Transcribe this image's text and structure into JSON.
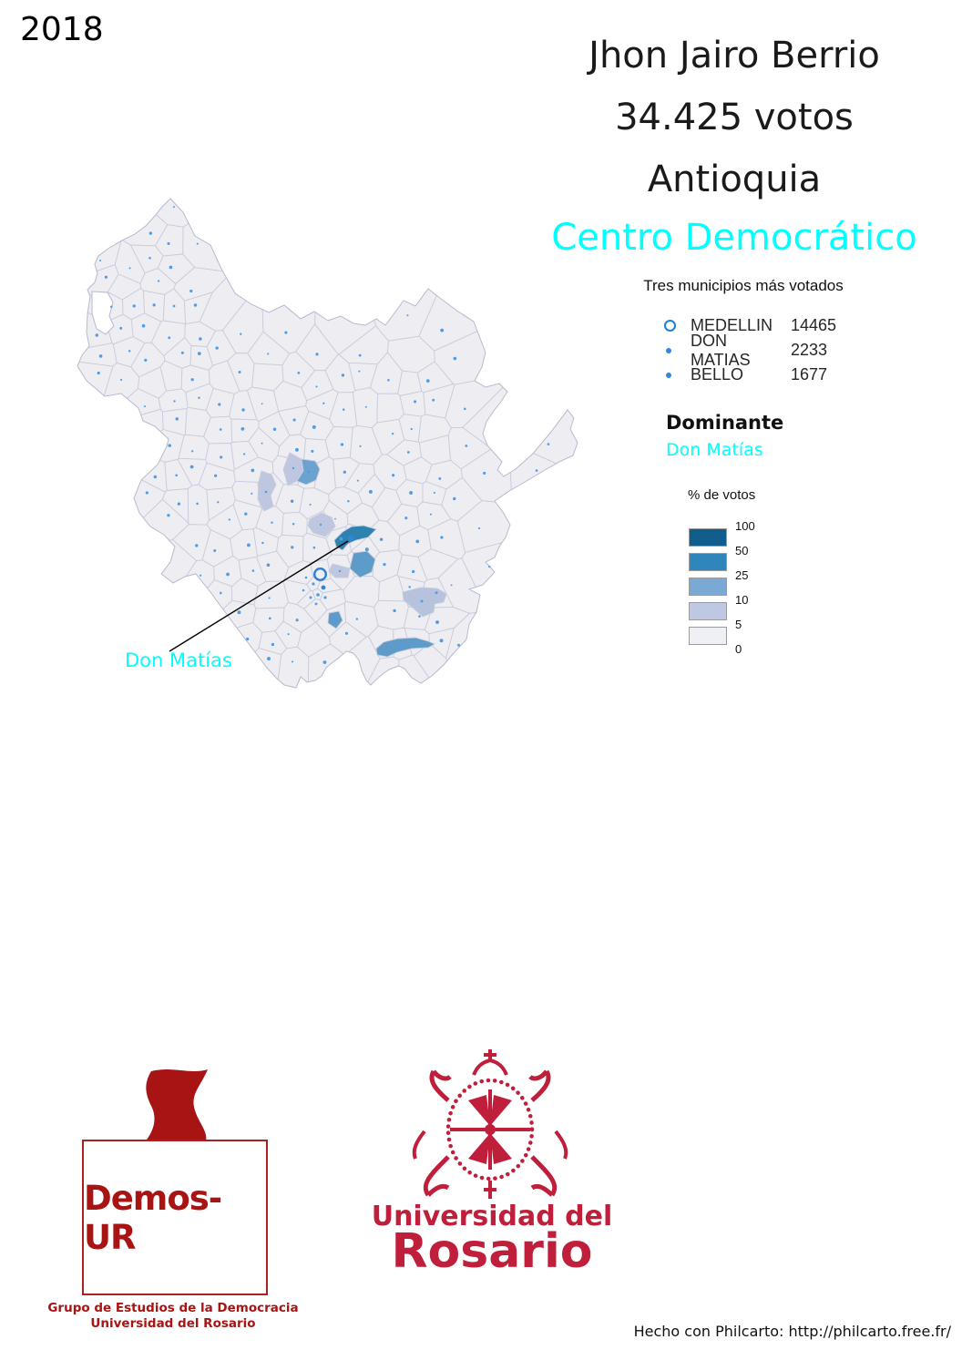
{
  "year": "2018",
  "title": {
    "candidate": "Jhon Jairo Berrio",
    "votes": "34.425 votos",
    "department": "Antioquia",
    "party": "Centro Democrático",
    "party_color": "#00ffff"
  },
  "top_municipalities": {
    "heading": "Tres municipios más votados",
    "rows": [
      {
        "name": "MEDELLIN",
        "value": "14465",
        "marker": "ring"
      },
      {
        "name": "DON MATIAS",
        "value": "2233",
        "marker": "dot"
      },
      {
        "name": "BELLO",
        "value": "1677",
        "marker": "dot"
      }
    ]
  },
  "dominant": {
    "label": "Dominante",
    "value": "Don Matías",
    "value_color": "#00ffff"
  },
  "scale": {
    "title": "% de votos",
    "labels": [
      "100",
      "50",
      "25",
      "10",
      "5",
      "0"
    ],
    "colors": [
      "#115e8d",
      "#2e86ba",
      "#7aa9d4",
      "#bfc8e2",
      "#eff0f6"
    ]
  },
  "map": {
    "label": "Don Matías",
    "label_color": "#00ffff",
    "dot_color": "#4f9de8",
    "base_fill": "#ededf2",
    "border_color": "#c9ccdb"
  },
  "logos": {
    "demos": {
      "name": "Demos-UR",
      "caption_line1": "Grupo de Estudios de la Democracia",
      "caption_line2": "Universidad del Rosario"
    },
    "rosario": {
      "line1": "Universidad del",
      "line2": "Rosario"
    }
  },
  "footer": {
    "credit": "Hecho con Philcarto: http://philcarto.free.fr/"
  }
}
